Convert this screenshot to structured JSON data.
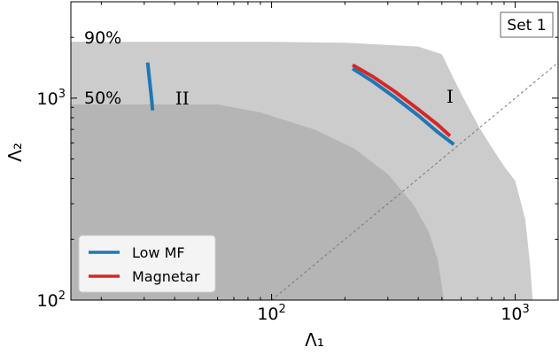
{
  "chart_data": {
    "type": "line",
    "title": "",
    "xlabel": "Λ₁",
    "ylabel": "Λ₂",
    "xscale": "log",
    "yscale": "log",
    "xlim": [
      15,
      1500
    ],
    "ylim": [
      100,
      3000
    ],
    "x_ticks": [
      {
        "value": 100,
        "base": "10",
        "exp": "2"
      },
      {
        "value": 1000,
        "base": "10",
        "exp": "3"
      }
    ],
    "y_ticks": [
      {
        "value": 100,
        "base": "10",
        "exp": "2"
      },
      {
        "value": 1000,
        "base": "10",
        "exp": "3"
      }
    ],
    "grid": false,
    "legend_position": "lower-left",
    "set_label": "Set 1",
    "contours": [
      {
        "label": "90%",
        "color": "#cccccc",
        "points": [
          [
            15,
            1900
          ],
          [
            100,
            1900
          ],
          [
            200,
            1880
          ],
          [
            400,
            1800
          ],
          [
            500,
            1650
          ],
          [
            550,
            1300
          ],
          [
            600,
            1050
          ],
          [
            660,
            850
          ],
          [
            720,
            700
          ],
          [
            780,
            600
          ],
          [
            900,
            460
          ],
          [
            1000,
            390
          ],
          [
            1100,
            250
          ],
          [
            1150,
            150
          ],
          [
            1180,
            100
          ]
        ]
      },
      {
        "label": "50%",
        "color": "#b5b5b5",
        "points": [
          [
            15,
            930
          ],
          [
            60,
            930
          ],
          [
            90,
            850
          ],
          [
            150,
            700
          ],
          [
            220,
            560
          ],
          [
            300,
            420
          ],
          [
            380,
            300
          ],
          [
            440,
            220
          ],
          [
            480,
            160
          ],
          [
            510,
            100
          ]
        ]
      }
    ],
    "reference_line": {
      "style": "dashed",
      "points": [
        [
          100,
          100
        ],
        [
          1500,
          1500
        ]
      ]
    },
    "region_labels": [
      {
        "text": "II",
        "x": 43,
        "y": 1000
      },
      {
        "text": "I",
        "x": 540,
        "y": 1020
      }
    ],
    "series": [
      {
        "name": "Low MF",
        "color": "#1f77b4",
        "x": [
          31,
          31.5,
          32,
          32.5
        ],
        "y": [
          1500,
          1250,
          1050,
          870
        ]
      },
      {
        "name": "Magnetar",
        "color": "#d62728",
        "x": [
          215,
          260,
          320,
          400,
          480,
          540
        ],
        "y": [
          1460,
          1280,
          1080,
          880,
          740,
          650
        ]
      },
      {
        "name": "",
        "color": "#1f77b4",
        "x": [
          215,
          260,
          320,
          400,
          480,
          560
        ],
        "y": [
          1400,
          1210,
          1010,
          820,
          680,
          590
        ]
      }
    ]
  }
}
